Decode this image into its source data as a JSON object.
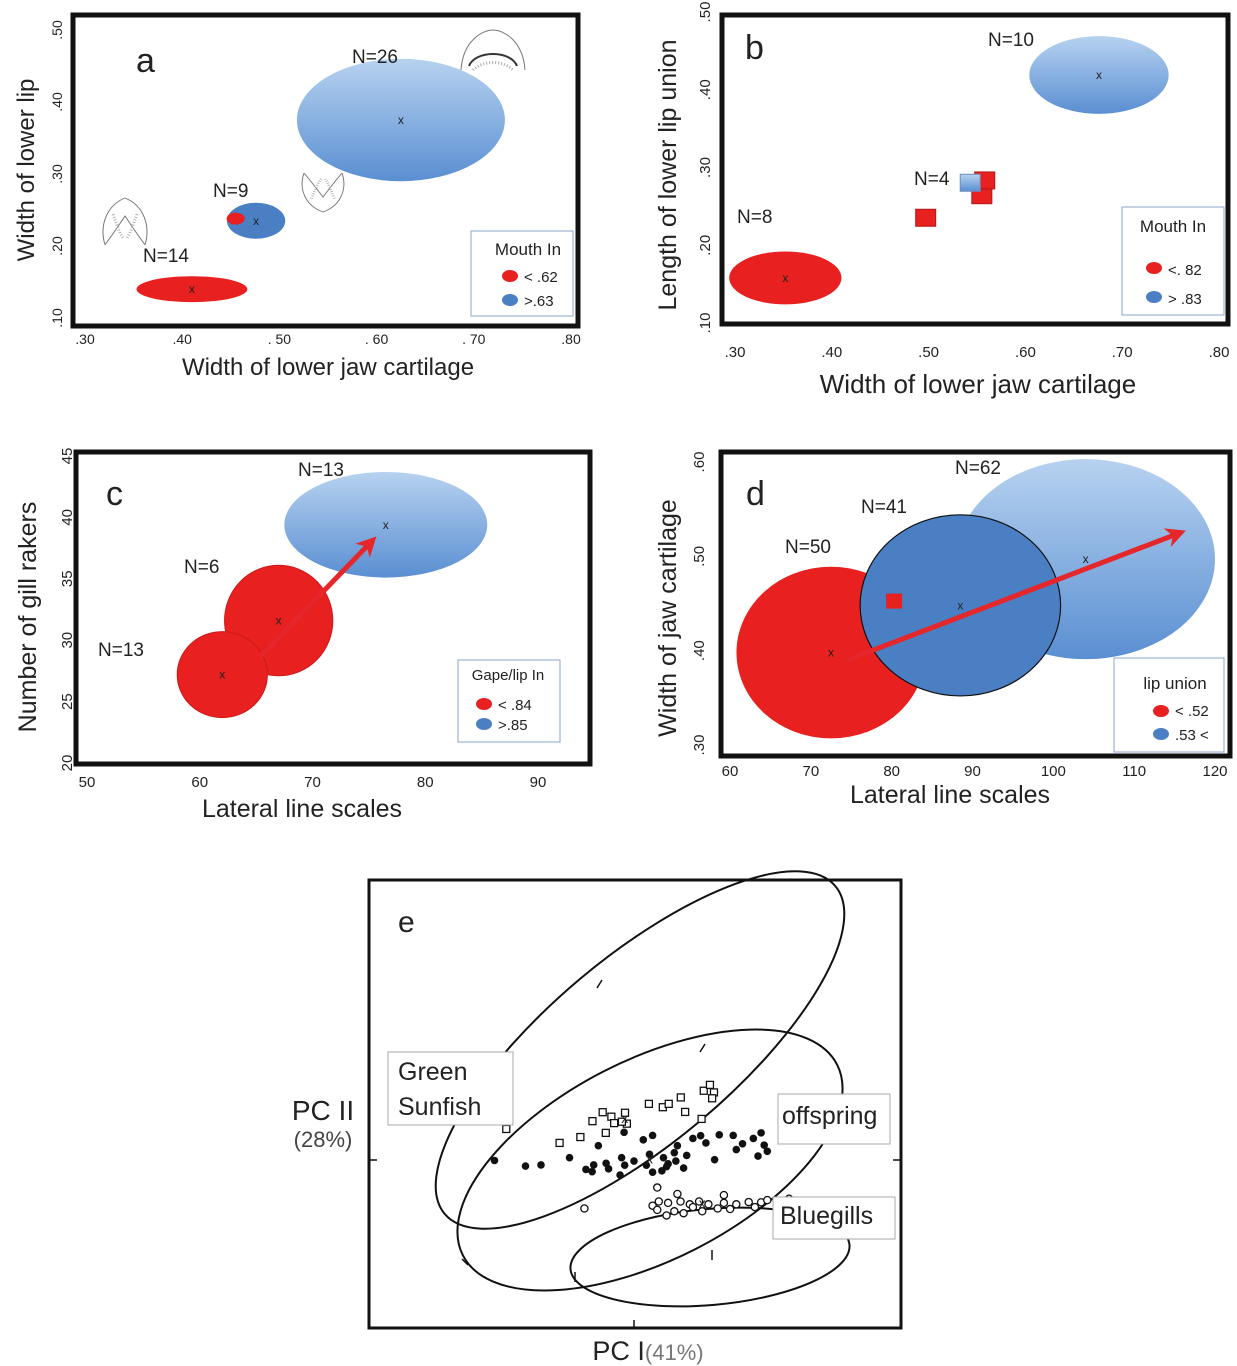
{
  "colors": {
    "red": "#e8201f",
    "blue_dark": "#4a7fc4",
    "blue_light_top": "#a9c8ec",
    "blue_light_bot": "#5b8fd1",
    "arrow": "#e5262a"
  },
  "chart_data": [
    {
      "panel": "a",
      "type": "scatter",
      "xlabel": "Width of lower jaw cartilage",
      "ylabel": "Width of lower lip",
      "xticks": [
        ".30",
        ".40",
        ". 50",
        ". 60",
        ". 70",
        ".80"
      ],
      "yticks": [
        ".10",
        ".20",
        ".30",
        ".40",
        ".50"
      ],
      "xlim": [
        0.3,
        0.8
      ],
      "ylim": [
        0.1,
        0.5
      ],
      "legend": {
        "title": "Mouth  In",
        "position": "bottom-right",
        "entries": [
          {
            "label": "< .62",
            "color": "red"
          },
          {
            "label": ">.63",
            "color": "blue"
          }
        ]
      },
      "ellipses": [
        {
          "label": "N=14",
          "cx": 0.41,
          "cy": 0.14,
          "rx": 0.057,
          "ry": 0.018,
          "fill": "red",
          "mark": "x"
        },
        {
          "label": "N=9",
          "cx": 0.476,
          "cy": 0.235,
          "rx": 0.03,
          "ry": 0.025,
          "fill": "blue",
          "mark": "x"
        },
        {
          "label": "N=26",
          "cx": 0.625,
          "cy": 0.375,
          "rx": 0.107,
          "ry": 0.085,
          "fill": "lightblue",
          "mark": "x"
        }
      ],
      "points": [
        {
          "x": 0.455,
          "y": 0.238,
          "fill": "red",
          "shape": "ellipse"
        }
      ]
    },
    {
      "panel": "b",
      "type": "scatter",
      "xlabel": "Width of lower jaw cartilage",
      "ylabel": "Length of lower lip union",
      "xticks": [
        ".30",
        ".40",
        ".50",
        ".60",
        ".70",
        ".80"
      ],
      "yticks": [
        ".10",
        ".20",
        ".30",
        ".40",
        ".50"
      ],
      "xlim": [
        0.3,
        0.8
      ],
      "ylim": [
        0.1,
        0.5
      ],
      "legend": {
        "title": "Mouth  In",
        "position": "bottom-right",
        "entries": [
          {
            "label": "<. 82",
            "color": "red"
          },
          {
            "label": "> .83",
            "color": "blue"
          }
        ]
      },
      "ellipses": [
        {
          "label": "N=8",
          "cx": 0.352,
          "cy": 0.158,
          "rx": 0.058,
          "ry": 0.034,
          "fill": "red",
          "mark": "x"
        },
        {
          "label": "N=10",
          "cx": 0.676,
          "cy": 0.419,
          "rx": 0.072,
          "ry": 0.05,
          "fill": "lightblue",
          "mark": "x"
        }
      ],
      "squares_label": "N=4",
      "points": [
        {
          "x": 0.497,
          "y": 0.236,
          "fill": "red",
          "shape": "square"
        },
        {
          "x": 0.555,
          "y": 0.265,
          "fill": "red",
          "shape": "square"
        },
        {
          "x": 0.558,
          "y": 0.284,
          "fill": "red",
          "shape": "square"
        },
        {
          "x": 0.543,
          "y": 0.281,
          "fill": "blue",
          "shape": "square"
        }
      ]
    },
    {
      "panel": "c",
      "type": "scatter",
      "xlabel": "Lateral line scales",
      "ylabel": "Number of gill rakers",
      "xticks": [
        "50",
        "60",
        "70",
        "80",
        "90"
      ],
      "yticks": [
        "20",
        "25",
        "30",
        "35",
        "40",
        "45"
      ],
      "xlim": [
        50,
        90
      ],
      "ylim": [
        20,
        45
      ],
      "legend": {
        "title": "Gape/lip In",
        "position": "bottom-right",
        "entries": [
          {
            "label": "< .84",
            "color": "red"
          },
          {
            "label": ">.85",
            "color": "blue"
          }
        ]
      },
      "ellipses": [
        {
          "label": "N=13",
          "cx": 62,
          "cy": 27.2,
          "rx": 4,
          "ry": 3.5,
          "fill": "red",
          "mark": "x"
        },
        {
          "label": "N=6",
          "cx": 67,
          "cy": 31.6,
          "rx": 4.8,
          "ry": 4.5,
          "fill": "red",
          "mark": "x"
        },
        {
          "label": "N=13",
          "cx": 76.5,
          "cy": 39.4,
          "rx": 9,
          "ry": 4.3,
          "fill": "lightblue",
          "mark": "x"
        }
      ],
      "arrow": {
        "from": [
          65.3,
          28.6
        ],
        "to": [
          75.3,
          38.1
        ]
      }
    },
    {
      "panel": "d",
      "type": "scatter",
      "xlabel": "Lateral line scales",
      "ylabel": "Width of jaw cartilage",
      "xticks": [
        "60",
        "70",
        "80",
        "90",
        "100",
        "110",
        "120"
      ],
      "yticks": [
        ".30",
        ".40",
        ".50",
        ".60"
      ],
      "xlim": [
        60,
        120
      ],
      "ylim": [
        0.3,
        0.6
      ],
      "legend": {
        "title": "lip union",
        "position": "bottom-right",
        "entries": [
          {
            "label": "< .52",
            "color": "red"
          },
          {
            "label": ".53 <",
            "color": "blue"
          }
        ]
      },
      "ellipses": [
        {
          "label": "N=62",
          "cx": 104,
          "cy": 0.497,
          "rx": 16,
          "ry": 0.106,
          "fill": "lightblue",
          "mark": "x"
        },
        {
          "label": "N=50",
          "cx": 72.5,
          "cy": 0.398,
          "rx": 11.7,
          "ry": 0.091,
          "fill": "red",
          "mark": "x"
        },
        {
          "label": "N=41",
          "cx": 88.5,
          "cy": 0.448,
          "rx": 12.4,
          "ry": 0.096,
          "fill": "blue",
          "mark": "x",
          "stroke": true
        }
      ],
      "points": [
        {
          "x": 80.3,
          "y": 0.452,
          "fill": "red",
          "shape": "square"
        }
      ],
      "arrow": {
        "from": [
          74.5,
          0.39
        ],
        "to": [
          115.7,
          0.525
        ]
      }
    },
    {
      "panel": "e",
      "type": "scatter",
      "xlabel": "PC I",
      "xlabel_pct": "(41%)",
      "ylabel": "PC II",
      "ylabel_pct": "(28%)",
      "group_labels": [
        "Green Sunfish",
        "offspring",
        "Bluegills"
      ],
      "groups": [
        {
          "name": "Green Sunfish",
          "marker": "open-square",
          "points": [
            [
              -4.12,
              1.65
            ],
            [
              -1.73,
              1.36
            ],
            [
              -1.34,
              1.93
            ],
            [
              -1.01,
              2.25
            ],
            [
              -0.29,
              2.23
            ],
            [
              0.48,
              2.55
            ],
            [
              0.93,
              2.43
            ],
            [
              1.51,
              2.78
            ],
            [
              1.65,
              2.26
            ],
            [
              2.25,
              3.02
            ],
            [
              2.45,
              3.23
            ],
            [
              2.58,
              2.96
            ],
            [
              2.52,
              2.75
            ],
            [
              2.18,
              2.01
            ],
            [
              -0.73,
              2.09
            ],
            [
              -0.64,
              1.86
            ],
            [
              -0.23,
              1.84
            ],
            [
              -0.39,
              1.91
            ],
            [
              -0.91,
              1.51
            ],
            [
              1.12,
              2.55
            ],
            [
              -2.4,
              1.15
            ]
          ]
        },
        {
          "name": "offspring",
          "marker": "filled-circle",
          "points": [
            [
              -4.5,
              0.52
            ],
            [
              -3.5,
              0.32
            ],
            [
              -3.0,
              0.36
            ],
            [
              -2.08,
              0.62
            ],
            [
              -1.15,
              1.05
            ],
            [
              -0.32,
              1.53
            ],
            [
              0.3,
              1.26
            ],
            [
              0.6,
              1.42
            ],
            [
              1.4,
              1.05
            ],
            [
              1.9,
              1.31
            ],
            [
              2.15,
              1.41
            ],
            [
              2.32,
              1.15
            ],
            [
              2.75,
              1.44
            ],
            [
              3.2,
              1.42
            ],
            [
              3.5,
              1.12
            ],
            [
              3.85,
              1.31
            ],
            [
              4.1,
              1.51
            ],
            [
              4.2,
              1.07
            ],
            [
              4.3,
              0.85
            ],
            [
              4.0,
              0.68
            ],
            [
              3.3,
              0.91
            ],
            [
              2.6,
              0.55
            ],
            [
              1.7,
              0.7
            ],
            [
              1.3,
              0.8
            ],
            [
              0.95,
              0.62
            ],
            [
              0.5,
              0.74
            ],
            [
              0.0,
              0.5
            ],
            [
              -0.4,
              0.62
            ],
            [
              -0.9,
              0.42
            ],
            [
              -1.3,
              0.36
            ],
            [
              -1.55,
              0.2
            ],
            [
              -1.35,
              0.12
            ],
            [
              0.4,
              0.35
            ],
            [
              0.9,
              0.15
            ],
            [
              1.6,
              0.25
            ],
            [
              1.1,
              0.4
            ],
            [
              -0.3,
              0.35
            ],
            [
              -0.82,
              0.22
            ],
            [
              1.35,
              0.5
            ],
            [
              1.05,
              0.3
            ],
            [
              0.6,
              0.1
            ],
            [
              -0.45,
              0.0
            ]
          ]
        },
        {
          "name": "Bluegills",
          "marker": "open-circle",
          "points": [
            [
              -1.6,
              -1.2
            ],
            [
              0.6,
              -1.1
            ],
            [
              0.8,
              -0.95
            ],
            [
              1.1,
              -1.0
            ],
            [
              1.5,
              -0.95
            ],
            [
              1.8,
              -1.05
            ],
            [
              2.1,
              -0.95
            ],
            [
              2.4,
              -1.05
            ],
            [
              2.9,
              -1.0
            ],
            [
              3.3,
              -1.05
            ],
            [
              3.7,
              -0.97
            ],
            [
              4.1,
              -0.98
            ],
            [
              4.3,
              -0.9
            ],
            [
              4.6,
              -0.92
            ],
            [
              5.0,
              -0.85
            ],
            [
              0.75,
              -1.25
            ],
            [
              1.3,
              -1.3
            ],
            [
              1.9,
              -1.15
            ],
            [
              2.7,
              -1.2
            ],
            [
              3.1,
              -1.22
            ],
            [
              3.9,
              -1.15
            ],
            [
              1.05,
              -1.45
            ],
            [
              1.6,
              -1.37
            ],
            [
              2.2,
              -1.3
            ],
            [
              1.4,
              -0.68
            ],
            [
              2.9,
              -0.72
            ],
            [
              0.75,
              -0.45
            ]
          ]
        }
      ]
    }
  ]
}
